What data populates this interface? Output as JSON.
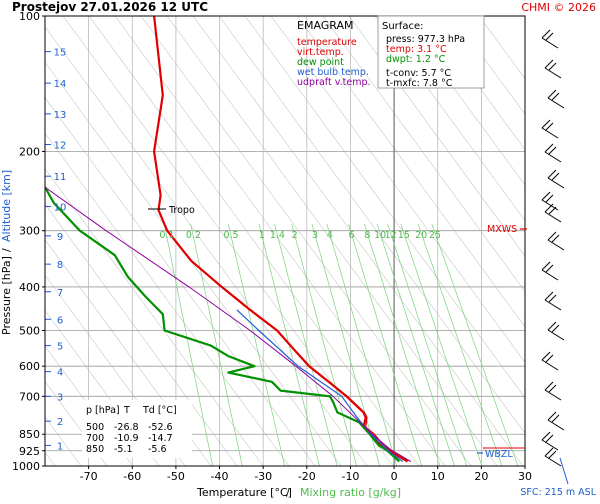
{
  "header": {
    "station_time": "Prostejov    27.01.2026 12 UTC",
    "credit": "CHMI © 2026"
  },
  "legend": {
    "title": "EMAGRAM",
    "items": [
      {
        "label": "temperature",
        "color": "#e00000"
      },
      {
        "label": "virt.temp.",
        "color": "#e00000"
      },
      {
        "label": "dew point",
        "color": "#009000"
      },
      {
        "label": "wet bulb temp.",
        "color": "#1f5fd0"
      },
      {
        "label": "udpraft v.temp.",
        "color": "#9000a0"
      }
    ]
  },
  "surface": {
    "title": "Surface:",
    "press": "press: 977.3 hPa",
    "temp": "temp: 3.1 °C",
    "dwpt": "dwpt: 1.2 °C",
    "tconv": "t-conv: 5.7 °C",
    "tmxfc": "t-mxfc: 7.8 °C",
    "temp_color": "#e00000",
    "dwpt_color": "#009000"
  },
  "table": {
    "headers": [
      "p [hPa]",
      "T",
      "Td [°C]"
    ],
    "rows": [
      [
        "500",
        "-26.8",
        "-52.6"
      ],
      [
        "700",
        "-10.9",
        "-14.7"
      ],
      [
        "850",
        "-5.1",
        "-5.6"
      ]
    ]
  },
  "labels": {
    "tropo": "Tropo",
    "mxws": "MXWS",
    "wbzl": "WBZL",
    "sfc": "SFC: 215 m ASL"
  },
  "axes": {
    "y_title": "Pressure [hPa]",
    "y_title_sep": "/",
    "y2_title": "Altitude [km]",
    "x_title": "Temperature [°C]",
    "x_title_sep": "/",
    "x2_title": "Mixing ratio [g/kg]"
  },
  "chart_data": {
    "type": "line",
    "pressure_ticks": [
      100,
      200,
      300,
      400,
      500,
      600,
      700,
      850,
      925,
      1000
    ],
    "altitude_ticks": [
      {
        "km": "1",
        "p": 900
      },
      {
        "km": "2",
        "p": 795
      },
      {
        "km": "3",
        "p": 700
      },
      {
        "km": "4",
        "p": 617
      },
      {
        "km": "5",
        "p": 540
      },
      {
        "km": "6",
        "p": 472
      },
      {
        "km": "7",
        "p": 410
      },
      {
        "km": "8",
        "p": 356
      },
      {
        "km": "9",
        "p": 308
      },
      {
        "km": "10",
        "p": 265
      },
      {
        "km": "11",
        "p": 227
      },
      {
        "km": "12",
        "p": 193
      },
      {
        "km": "13",
        "p": 165
      },
      {
        "km": "14",
        "p": 141
      },
      {
        "km": "15",
        "p": 120
      }
    ],
    "temperature_ticks": [
      -70,
      -60,
      -50,
      -40,
      -30,
      -20,
      -10,
      0,
      10,
      20,
      30
    ],
    "temperature_range": [
      -80,
      30
    ],
    "pressure_range": [
      100,
      1000
    ],
    "mixing_ratio_ticks": [
      "0.1",
      "0.2",
      "0.5",
      "1",
      "1.4",
      "2",
      "3",
      "4",
      "6",
      "8",
      "10",
      "12",
      "15",
      "20",
      "25"
    ],
    "mixing_ratio_values": [
      0.1,
      0.2,
      0.5,
      1,
      1.4,
      2,
      3,
      4,
      6,
      8,
      10,
      12,
      15,
      20,
      25
    ],
    "series": [
      {
        "name": "temperature",
        "color": "#e00000",
        "points": [
          [
            977,
            3.1
          ],
          [
            925,
            -1
          ],
          [
            900,
            -3
          ],
          [
            850,
            -5.1
          ],
          [
            820,
            -7
          ],
          [
            780,
            -6.5
          ],
          [
            760,
            -7
          ],
          [
            700,
            -10.9
          ],
          [
            650,
            -15
          ],
          [
            600,
            -19.5
          ],
          [
            550,
            -23
          ],
          [
            500,
            -26.8
          ],
          [
            450,
            -33
          ],
          [
            400,
            -39.5
          ],
          [
            350,
            -46.5
          ],
          [
            300,
            -52
          ],
          [
            270,
            -54
          ],
          [
            250,
            -53.5
          ],
          [
            200,
            -55
          ],
          [
            150,
            -53
          ],
          [
            100,
            -55
          ]
        ]
      },
      {
        "name": "virt.temp.",
        "color": "#e00000",
        "points": [
          [
            977,
            3.8
          ],
          [
            925,
            -0.4
          ],
          [
            900,
            -2.4
          ],
          [
            850,
            -4.5
          ],
          [
            820,
            -6.5
          ],
          [
            780,
            -6.2
          ],
          [
            760,
            -6.8
          ],
          [
            700,
            -10.7
          ],
          [
            650,
            -14.8
          ],
          [
            600,
            -19.3
          ],
          [
            550,
            -22.9
          ],
          [
            500,
            -26.7
          ],
          [
            450,
            -32.9
          ],
          [
            400,
            -39.4
          ],
          [
            350,
            -46.5
          ],
          [
            300,
            -52
          ]
        ]
      },
      {
        "name": "dew point",
        "color": "#009000",
        "points": [
          [
            977,
            1.2
          ],
          [
            925,
            -1.5
          ],
          [
            900,
            -3.5
          ],
          [
            850,
            -5.6
          ],
          [
            800,
            -8
          ],
          [
            760,
            -13
          ],
          [
            720,
            -14
          ],
          [
            700,
            -14.7
          ],
          [
            680,
            -26
          ],
          [
            650,
            -28
          ],
          [
            620,
            -38
          ],
          [
            600,
            -32
          ],
          [
            570,
            -38
          ],
          [
            540,
            -42
          ],
          [
            500,
            -52.6
          ],
          [
            460,
            -53
          ],
          [
            420,
            -57
          ],
          [
            380,
            -61
          ],
          [
            340,
            -64
          ],
          [
            300,
            -72
          ],
          [
            260,
            -78
          ],
          [
            240,
            -80
          ]
        ]
      },
      {
        "name": "wet bulb temp.",
        "color": "#1f5fd0",
        "points": [
          [
            977,
            2
          ],
          [
            925,
            -1.3
          ],
          [
            850,
            -5.3
          ],
          [
            780,
            -8.5
          ],
          [
            700,
            -12
          ],
          [
            600,
            -22
          ],
          [
            500,
            -31
          ],
          [
            450,
            -36
          ]
        ]
      },
      {
        "name": "udpraft v.temp.",
        "color": "#9000a0",
        "points": [
          [
            977,
            3.8
          ],
          [
            925,
            -0.5
          ],
          [
            850,
            -5
          ],
          [
            700,
            -14
          ],
          [
            600,
            -22.5
          ],
          [
            500,
            -33
          ],
          [
            400,
            -47
          ],
          [
            300,
            -66
          ],
          [
            240,
            -80
          ]
        ]
      }
    ],
    "markers": {
      "tropopause_hpa": 260,
      "mxws_hpa": 300
    }
  }
}
